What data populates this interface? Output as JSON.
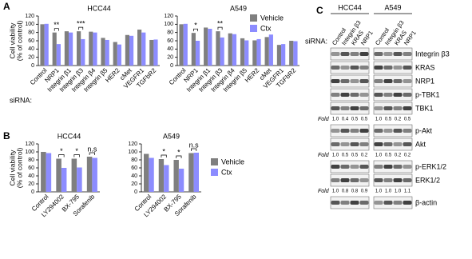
{
  "panels": [
    "A",
    "B",
    "C"
  ],
  "chart_data": [
    {
      "type": "bar",
      "title": "HCC44",
      "ylabel": [
        "Cell viability",
        "(% of control)"
      ],
      "x_prefix": "siRNA:",
      "categories": [
        "Control",
        "NRP1",
        "Integrin β1",
        "Integrin β3",
        "Integrin β4",
        "Integrin β5",
        "HER2",
        "cMet",
        "VEGFR1",
        "TGFbR2"
      ],
      "series": [
        {
          "color": "#7f7f7f",
          "values": [
            100,
            80,
            83,
            83,
            82,
            67,
            57,
            74,
            87,
            62
          ]
        },
        {
          "color": "#8c8cff",
          "values": [
            101,
            52,
            80,
            64,
            80,
            62,
            51,
            72,
            80,
            63
          ]
        }
      ],
      "annotations": [
        null,
        "**",
        null,
        "***",
        null,
        null,
        null,
        null,
        null,
        null
      ],
      "ylim": [
        0,
        120
      ],
      "yticks": [
        0,
        20,
        40,
        60,
        80,
        100,
        120
      ]
    },
    {
      "type": "bar",
      "title": "A549",
      "categories": [
        "Control",
        "NRP1",
        "Integrin β1",
        "Integrin β3",
        "Integrin β4",
        "Integrin β5",
        "HER2",
        "cMet",
        "VEGFR1",
        "TGFbR2"
      ],
      "series": [
        {
          "name": "Vehicle",
          "color": "#7f7f7f",
          "values": [
            100,
            79,
            92,
            83,
            78,
            66,
            61,
            69,
            50,
            60
          ]
        },
        {
          "name": "Ctx",
          "color": "#8c8cff",
          "values": [
            101,
            60,
            89,
            68,
            76,
            61,
            64,
            75,
            52,
            59
          ]
        }
      ],
      "annotations": [
        null,
        "*",
        null,
        "**",
        null,
        null,
        null,
        null,
        null,
        null
      ],
      "ylim": [
        0,
        120
      ],
      "yticks": [
        0,
        20,
        40,
        60,
        80,
        100,
        120
      ],
      "legend": "upper right"
    },
    {
      "type": "bar",
      "title": "HCC44",
      "ylabel": [
        "Cell viability",
        "(% of control)"
      ],
      "categories": [
        "Control",
        "LY294002",
        "BX-795",
        "Sorafenib"
      ],
      "series": [
        {
          "color": "#7f7f7f",
          "values": [
            100,
            83,
            83,
            88
          ]
        },
        {
          "color": "#8c8cff",
          "values": [
            97,
            60,
            61,
            85
          ]
        }
      ],
      "annotations": [
        null,
        "*",
        "*",
        "n.s"
      ],
      "ylim": [
        0,
        120
      ],
      "yticks": [
        0,
        20,
        40,
        60,
        80,
        100,
        120
      ]
    },
    {
      "type": "bar",
      "title": "A549",
      "categories": [
        "Control",
        "LY294002",
        "BX-795",
        "Sorafenib"
      ],
      "series": [
        {
          "name": "Vehicle",
          "color": "#7f7f7f",
          "values": [
            95,
            82,
            80,
            97
          ]
        },
        {
          "name": "Ctx",
          "color": "#8c8cff",
          "values": [
            85,
            67,
            58,
            98
          ]
        }
      ],
      "annotations": [
        null,
        "*",
        "*",
        "n.s"
      ],
      "ylim": [
        0,
        120
      ],
      "yticks": [
        0,
        20,
        40,
        60,
        80,
        100,
        120
      ],
      "legend": "right"
    }
  ],
  "blot": {
    "siRNA_label": "siRNA:",
    "fold_label": "Fold",
    "groups": [
      {
        "name": "HCC44",
        "lanes": [
          "Control",
          "Integrin β3",
          "KRAS",
          "NRP1"
        ]
      },
      {
        "name": "A549",
        "lanes": [
          "Control",
          "Integrin β3",
          "KRAS",
          "NRP1"
        ]
      }
    ],
    "rows": [
      {
        "label": "Integrin β3"
      },
      {
        "label": "KRAS"
      },
      {
        "label": "NRP1"
      },
      {
        "label": "p-TBK1"
      },
      {
        "label": "TBK1",
        "fold": [
          "1.0",
          "0.4",
          "0.5",
          "0.5",
          "1.0",
          "0.5",
          "0.2",
          "0.5"
        ]
      },
      {
        "label": "p-Akt"
      },
      {
        "label": "Akt",
        "fold": [
          "1.0",
          "0.5",
          "0.5",
          "0.2",
          "1.0",
          "0.5",
          "0.2",
          "0.2"
        ]
      },
      {
        "label": "p-ERK1/2"
      },
      {
        "label": "ERK1/2",
        "fold": [
          "1.0",
          "0.8",
          "0.8",
          "0.9",
          "1.0",
          "1.0",
          "1.0",
          "1.1"
        ]
      },
      {
        "label": "β-actin"
      }
    ]
  }
}
